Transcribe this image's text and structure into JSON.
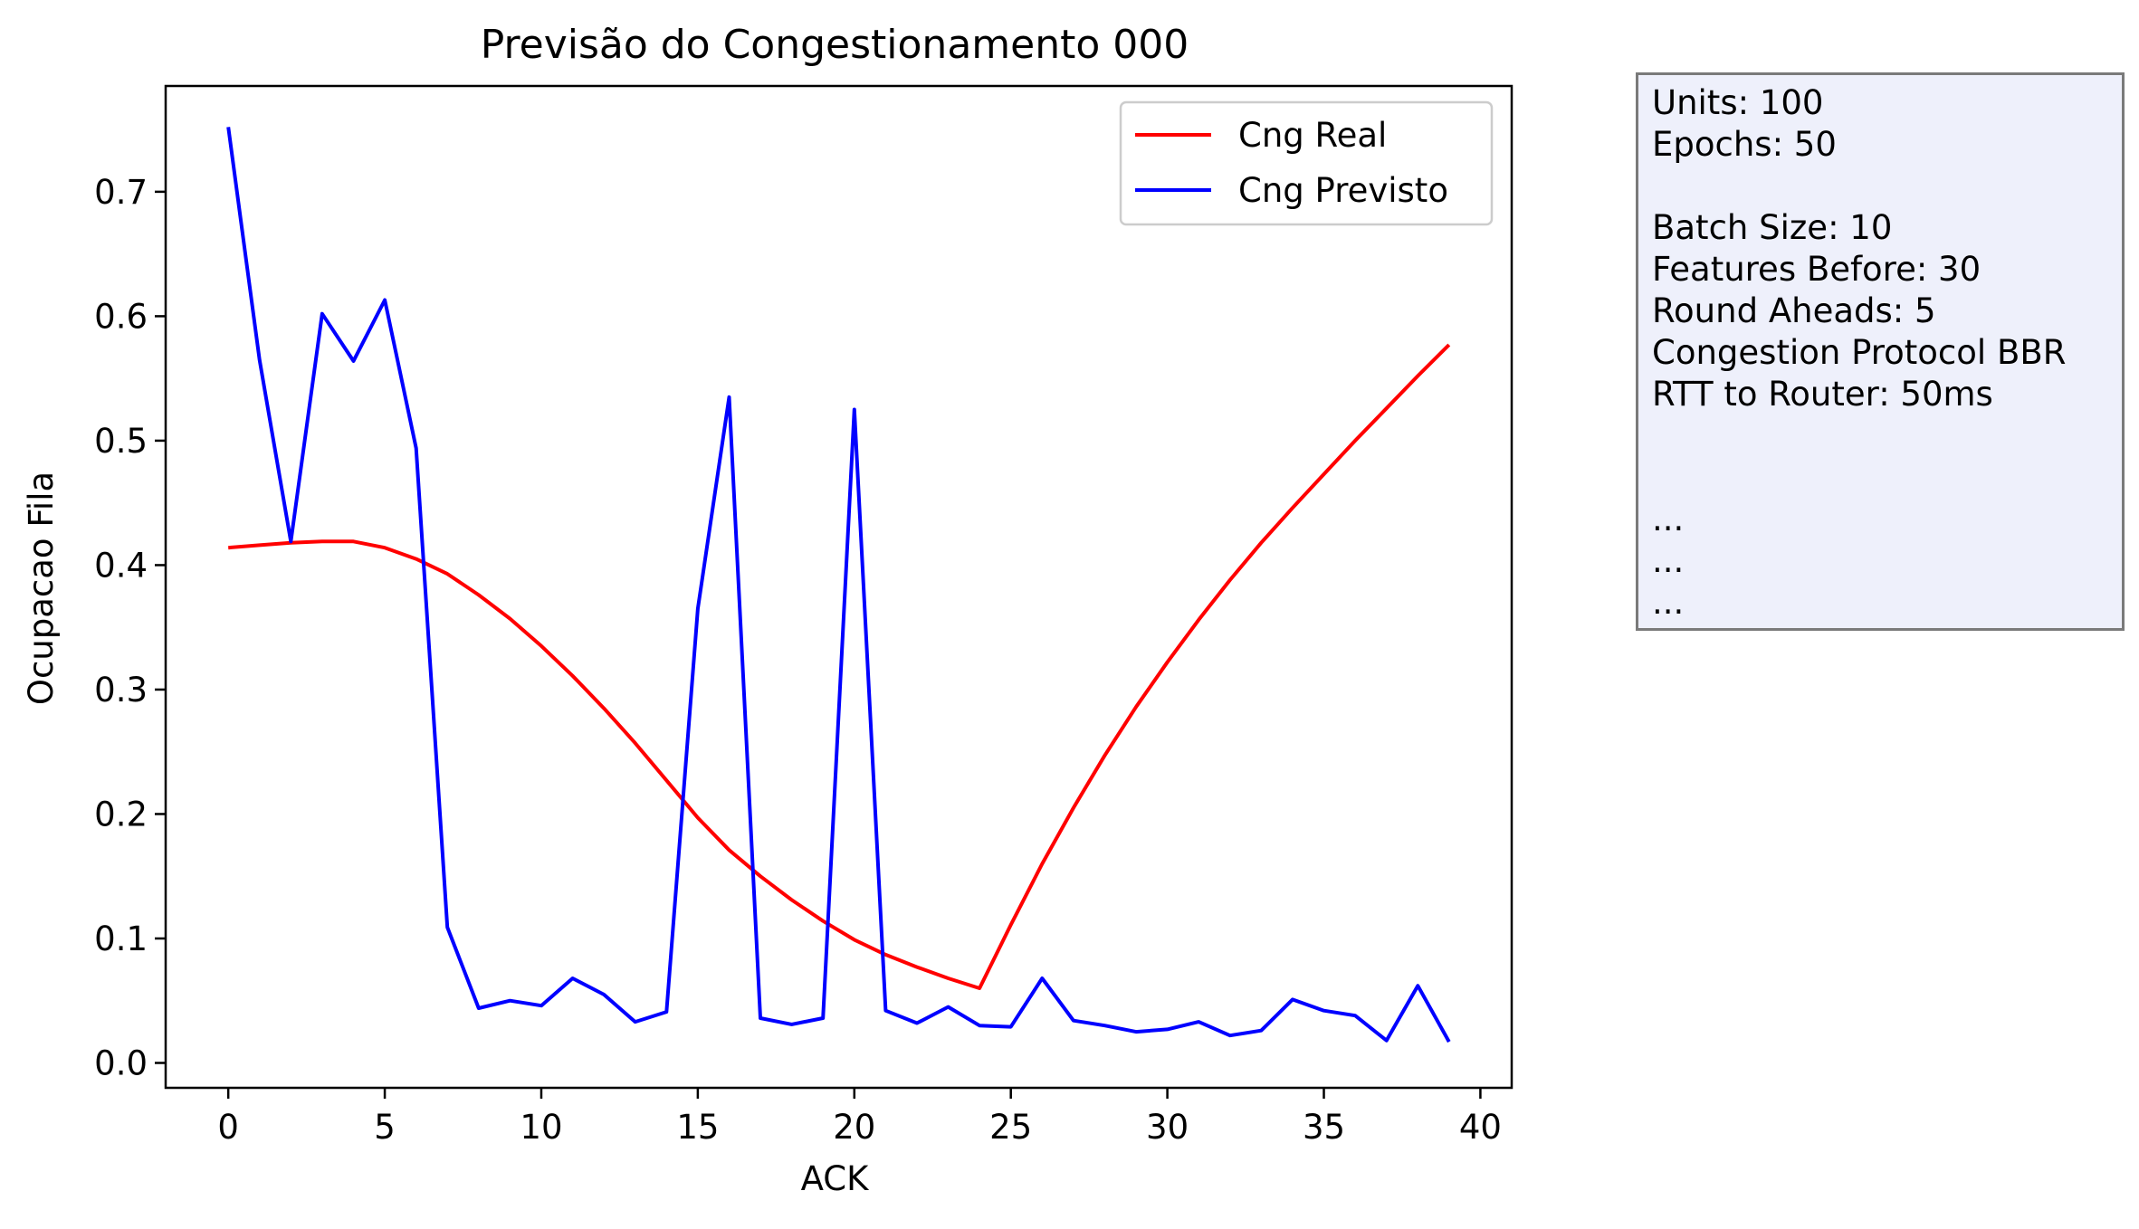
{
  "chart_data": {
    "type": "line",
    "title": "Previsão do Congestionamento 000",
    "xlabel": "ACK",
    "ylabel": "Ocupacao Fila",
    "xlim": [
      -2,
      41
    ],
    "ylim": [
      -0.02,
      0.785
    ],
    "xticks": [
      0,
      5,
      10,
      15,
      20,
      25,
      30,
      35,
      40
    ],
    "yticks": [
      0.0,
      0.1,
      0.2,
      0.3,
      0.4,
      0.5,
      0.6,
      0.7
    ],
    "xtick_labels": [
      "0",
      "5",
      "10",
      "15",
      "20",
      "25",
      "30",
      "35",
      "40"
    ],
    "ytick_labels": [
      "0.0",
      "0.1",
      "0.2",
      "0.3",
      "0.4",
      "0.5",
      "0.6",
      "0.7"
    ],
    "grid": false,
    "legend_position": "top-right",
    "x": [
      0,
      1,
      2,
      3,
      4,
      5,
      6,
      7,
      8,
      9,
      10,
      11,
      12,
      13,
      14,
      15,
      16,
      17,
      18,
      19,
      20,
      21,
      22,
      23,
      24,
      25,
      26,
      27,
      28,
      29,
      30,
      31,
      32,
      33,
      34,
      35,
      36,
      37,
      38,
      39
    ],
    "series": [
      {
        "name": "Cng Real",
        "color": "#ff0000",
        "values": [
          0.414,
          0.416,
          0.418,
          0.419,
          0.419,
          0.414,
          0.405,
          0.393,
          0.376,
          0.357,
          0.335,
          0.311,
          0.285,
          0.257,
          0.227,
          0.197,
          0.171,
          0.15,
          0.131,
          0.114,
          0.099,
          0.087,
          0.077,
          0.068,
          0.06,
          0.111,
          0.16,
          0.205,
          0.247,
          0.286,
          0.322,
          0.356,
          0.388,
          0.418,
          0.446,
          0.473,
          0.5,
          0.526,
          0.552,
          0.577
        ]
      },
      {
        "name": "Cng Previsto",
        "color": "#0000ff",
        "values": [
          0.752,
          0.565,
          0.419,
          0.602,
          0.564,
          0.613,
          0.494,
          0.109,
          0.044,
          0.05,
          0.046,
          0.068,
          0.055,
          0.033,
          0.041,
          0.365,
          0.535,
          0.036,
          0.031,
          0.036,
          0.525,
          0.042,
          0.032,
          0.045,
          0.03,
          0.029,
          0.068,
          0.034,
          0.03,
          0.025,
          0.027,
          0.033,
          0.022,
          0.026,
          0.051,
          0.042,
          0.038,
          0.018,
          0.062,
          0.017
        ]
      }
    ]
  },
  "info_box": {
    "lines": [
      "Units: 100",
      "Epochs: 50",
      "",
      "Batch Size: 10",
      "Features Before: 30",
      "Round Aheads: 5",
      "Congestion Protocol BBR",
      "RTT to Router: 50ms",
      "",
      "",
      "...",
      "...",
      "..."
    ],
    "background": "#eef0fb"
  }
}
